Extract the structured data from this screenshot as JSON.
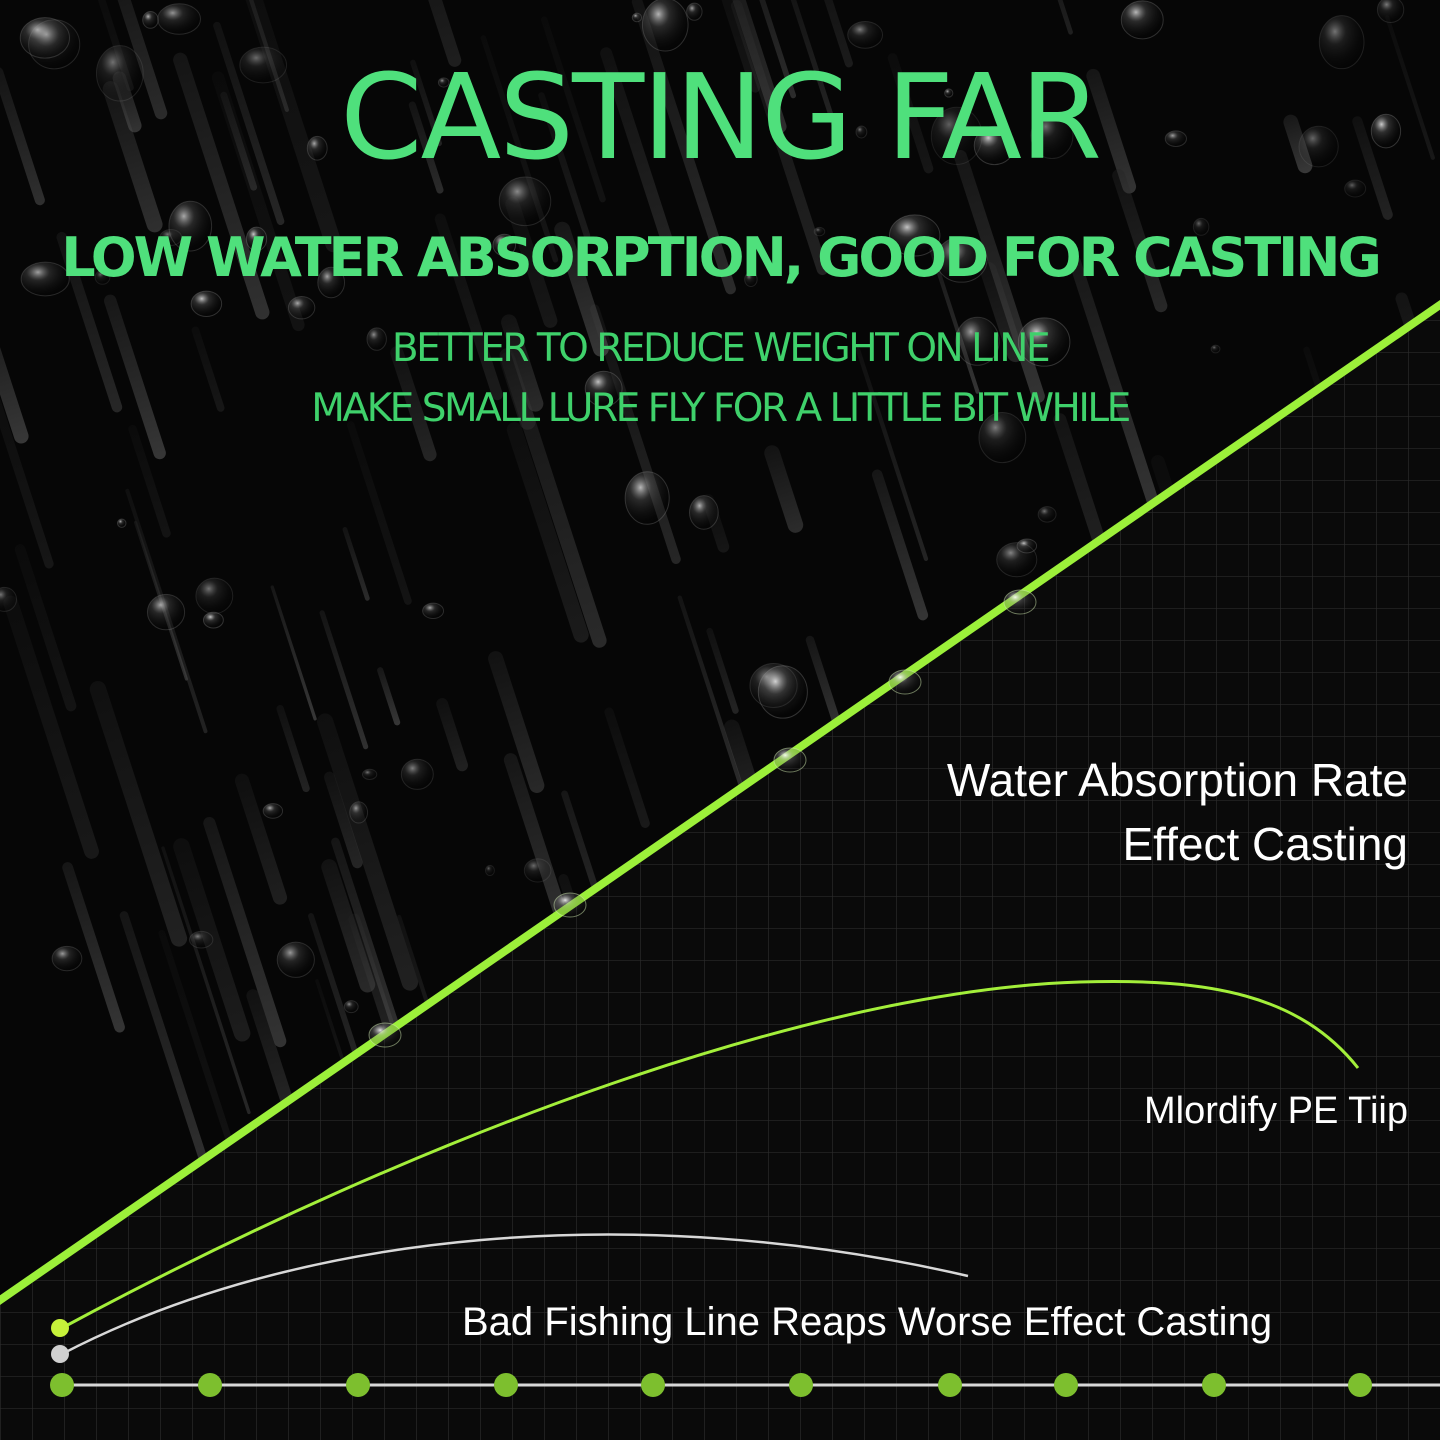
{
  "headline": "CASTING FAR",
  "subheadline": "LOW WATER ABSORPTION, GOOD FOR CASTING",
  "tagline": {
    "line1": "BETTER TO REDUCE WEIGHT ON LINE",
    "line2": "MAKE SMALL LURE FLY FOR A LITTLE BIT WHILE"
  },
  "labels": {
    "water_absorption_line1": "Water Absorption Rate",
    "water_absorption_line2": "Effect Casting",
    "good_line": "Mlordify PE Tiip",
    "bad_line": "Bad Fishing Line Reaps Worse Effect Casting"
  },
  "colors": {
    "accent_green": "#4fe07c",
    "line_green": "#a6f23a",
    "grid": "#2a2a2a",
    "text_white": "#ffffff"
  },
  "icons": {
    "background": "water-droplets-image",
    "marker": "green-dot-icon"
  }
}
